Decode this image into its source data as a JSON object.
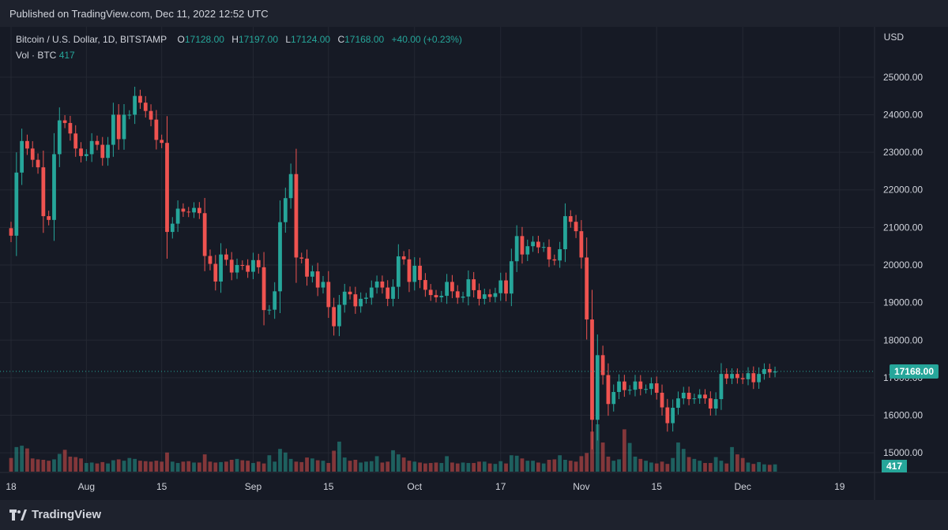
{
  "header": {
    "published": "Published on TradingView.com, Dec 11, 2022 12:52 UTC"
  },
  "legend": {
    "symbol": "Bitcoin / U.S. Dollar, 1D, BITSTAMP",
    "o_key": "O",
    "o_val": "17128.00",
    "h_key": "H",
    "h_val": "17197.00",
    "l_key": "L",
    "l_val": "17124.00",
    "c_key": "C",
    "c_val": "17168.00",
    "change": "+40.00 (+0.23%)",
    "vol_label": "Vol · BTC",
    "vol_val": "417"
  },
  "axis": {
    "currency": "USD",
    "last_price_label": "17168.00",
    "last_volume_label": "417"
  },
  "footer": {
    "brand": "TradingView"
  },
  "colors": {
    "up": "#26a69a",
    "down": "#ef5350",
    "background": "#161a25",
    "grid": "#242833",
    "text": "#d1d4dc"
  },
  "chart_data": {
    "type": "candlestick",
    "title": "Bitcoin / U.S. Dollar, 1D, BITSTAMP",
    "ylabel": "USD",
    "ylim": [
      14500,
      25500
    ],
    "y_ticks": [
      15000,
      16000,
      17000,
      18000,
      19000,
      20000,
      21000,
      22000,
      23000,
      24000,
      25000
    ],
    "y_tick_labels": [
      "15000.00",
      "16000.00",
      "17000.00",
      "18000.00",
      "19000.00",
      "20000.00",
      "21000.00",
      "22000.00",
      "23000.00",
      "24000.00",
      "25000.00"
    ],
    "x_ticks": [
      {
        "label": "18",
        "date": "2022-07-18"
      },
      {
        "label": "Aug",
        "date": "2022-08-01"
      },
      {
        "label": "15",
        "date": "2022-08-15"
      },
      {
        "label": "Sep",
        "date": "2022-09-01"
      },
      {
        "label": "15",
        "date": "2022-09-15"
      },
      {
        "label": "Oct",
        "date": "2022-10-01"
      },
      {
        "label": "17",
        "date": "2022-10-17"
      },
      {
        "label": "Nov",
        "date": "2022-11-01"
      },
      {
        "label": "15",
        "date": "2022-11-15"
      },
      {
        "label": "Dec",
        "date": "2022-12-01"
      },
      {
        "label": "19",
        "date": "2022-12-19"
      }
    ],
    "x_range": [
      "2022-07-18",
      "2022-12-23"
    ],
    "last_price": 17168,
    "candles_start_date": "2022-07-18",
    "closes": [
      20780,
      22460,
      23300,
      23100,
      22800,
      22600,
      21300,
      21200,
      22950,
      23850,
      23780,
      23500,
      23100,
      22900,
      22950,
      23300,
      23200,
      22850,
      23200,
      24000,
      23350,
      24000,
      24000,
      24500,
      24320,
      24100,
      23870,
      23330,
      23250,
      20880,
      21100,
      21500,
      21420,
      21400,
      21520,
      21380,
      20240,
      20030,
      19560,
      20280,
      20140,
      19800,
      20000,
      19990,
      19820,
      20130,
      19940,
      18800,
      18810,
      19300,
      21140,
      21780,
      22420,
      20200,
      20170,
      19690,
      19830,
      19400,
      19550,
      18880,
      18370,
      18940,
      19290,
      19220,
      18900,
      19100,
      19130,
      19400,
      19560,
      19400,
      19100,
      19420,
      20230,
      20150,
      19550,
      19980,
      19600,
      19340,
      19200,
      19140,
      19180,
      19550,
      19300,
      19130,
      19160,
      19620,
      19330,
      19100,
      19220,
      19150,
      19250,
      19590,
      19240,
      20100,
      20770,
      20280,
      20500,
      20620,
      20470,
      20480,
      20150,
      20120,
      20420,
      21300,
      21150,
      20900,
      20200,
      18550,
      15880,
      17600,
      17070,
      16300,
      16620,
      16900,
      16670,
      16680,
      16900,
      16700,
      16700,
      16850,
      16600,
      16210,
      15790,
      16200,
      16450,
      16600,
      16430,
      16450,
      16550,
      16450,
      16180,
      16430,
      17100,
      16980,
      17100,
      16990,
      16960,
      17120,
      16880,
      17100,
      17230,
      17140,
      17168
    ],
    "volumes": [
      3000,
      5400,
      5700,
      5100,
      2900,
      2700,
      2600,
      2400,
      2700,
      3900,
      4800,
      3300,
      3200,
      2900,
      1900,
      2000,
      1800,
      2100,
      1800,
      2500,
      2700,
      2400,
      3000,
      2800,
      2400,
      2300,
      2200,
      2400,
      2200,
      4200,
      2200,
      1900,
      2200,
      2300,
      2000,
      2000,
      3800,
      2200,
      2000,
      2100,
      2200,
      2600,
      2800,
      2500,
      2400,
      1900,
      2200,
      1800,
      3600,
      2200,
      5000,
      4200,
      2800,
      2200,
      2100,
      3100,
      2900,
      2500,
      2400,
      1900,
      4600,
      6600,
      3100,
      2400,
      2600,
      2000,
      2200,
      2300,
      3400,
      2000,
      2200,
      4700,
      3800,
      3100,
      2400,
      2200,
      2000,
      1800,
      1900,
      2000,
      1900,
      3400,
      2000,
      1800,
      2000,
      1900,
      1900,
      2200,
      2200,
      1800,
      1700,
      2300,
      1800,
      3600,
      3500,
      2900,
      2400,
      2400,
      2000,
      1800,
      2600,
      2700,
      3600,
      2600,
      2400,
      2200,
      3400,
      4100,
      8800,
      10400,
      6400,
      3300,
      2400,
      2700,
      9300,
      6300,
      3300,
      2800,
      2400,
      2000,
      1800,
      2200,
      1700,
      3000,
      6400,
      5000,
      3200,
      2800,
      2400,
      1900,
      1900,
      3200,
      2400,
      1800,
      5400,
      3800,
      3000,
      2000,
      1700,
      2100,
      1600,
      1500,
      1600,
      1200,
      417
    ]
  }
}
